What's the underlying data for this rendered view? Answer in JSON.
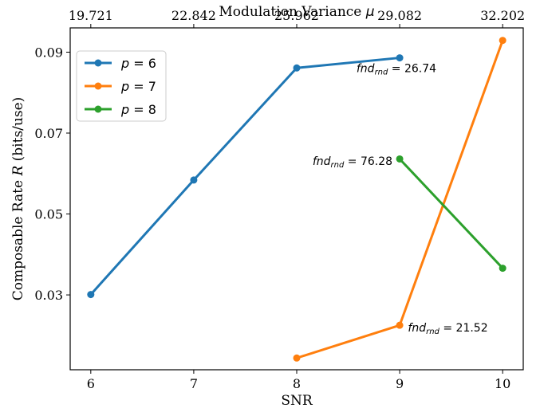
{
  "chart_data": {
    "type": "line",
    "xlabel": "SNR",
    "ylabel_main": "Composable Rate ",
    "ylabel_var": "R",
    "ylabel_unit": " (bits/use)",
    "top_label_main": "Modulation Variance ",
    "top_label_var": "μ",
    "xlim": [
      5.8,
      10.2
    ],
    "ylim": [
      0.0115,
      0.096
    ],
    "x_ticks": [
      {
        "value": 6,
        "label": "6"
      },
      {
        "value": 7,
        "label": "7"
      },
      {
        "value": 8,
        "label": "8"
      },
      {
        "value": 9,
        "label": "9"
      },
      {
        "value": 10,
        "label": "10"
      }
    ],
    "y_ticks": [
      {
        "value": 0.03,
        "label": "0.03"
      },
      {
        "value": 0.05,
        "label": "0.05"
      },
      {
        "value": 0.07,
        "label": "0.07"
      },
      {
        "value": 0.09,
        "label": "0.09"
      }
    ],
    "top_ticks": [
      {
        "value": 6,
        "label": "19.721"
      },
      {
        "value": 7,
        "label": "22.842"
      },
      {
        "value": 8,
        "label": "25.962"
      },
      {
        "value": 9,
        "label": "29.082"
      },
      {
        "value": 10,
        "label": "32.202"
      }
    ],
    "series": [
      {
        "name_var": "p",
        "name_val": " = 6",
        "color": "#1f77b4",
        "x": [
          6,
          7,
          8,
          9
        ],
        "y": [
          0.0301,
          0.0584,
          0.0861,
          0.0886
        ]
      },
      {
        "name_var": "p",
        "name_val": " = 7",
        "color": "#ff7f0e",
        "x": [
          8,
          9,
          10
        ],
        "y": [
          0.0144,
          0.0225,
          0.0929
        ]
      },
      {
        "name_var": "p",
        "name_val": " = 8",
        "color": "#2ca02c",
        "x": [
          9,
          10
        ],
        "y": [
          0.0636,
          0.0366
        ]
      }
    ],
    "annotations": [
      {
        "var": "fnd",
        "sub": "rnd",
        "val": " = 26.74",
        "x": 8.58,
        "y": 0.0851,
        "anchor": "start"
      },
      {
        "var": "fnd",
        "sub": "rnd",
        "val": " = 76.28",
        "x": 8.93,
        "y": 0.0621,
        "anchor": "end"
      },
      {
        "var": "fnd",
        "sub": "rnd",
        "val": " = 21.52",
        "x": 9.08,
        "y": 0.021,
        "anchor": "start"
      }
    ],
    "legend_position": "top-left",
    "grid": false
  }
}
